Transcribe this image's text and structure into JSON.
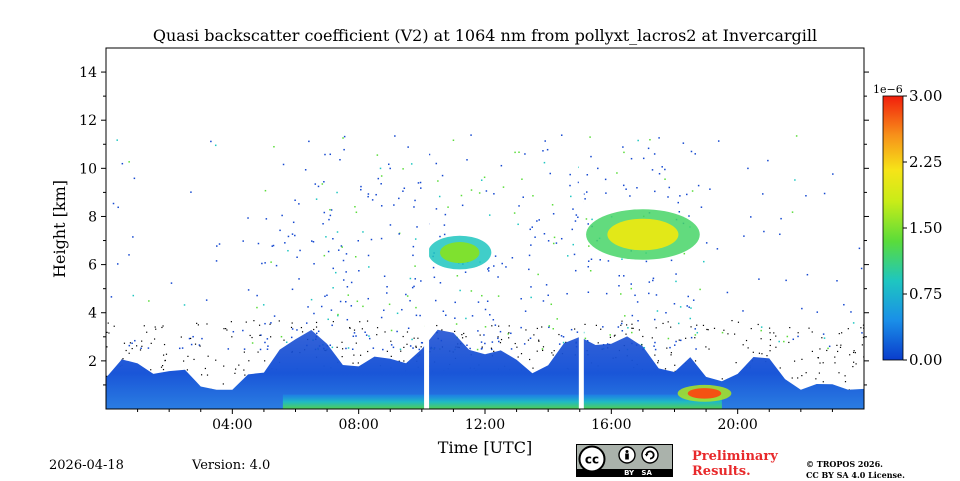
{
  "chart_data": {
    "type": "heatmap",
    "title": "Quasi backscatter coefficient (V2) at 1064 nm from pollyxt_lacros2 at Invercargill",
    "xlabel": "Time [UTC]",
    "ylabel": "Height [km]",
    "xlim_hours": [
      0,
      24
    ],
    "ylim_km": [
      0,
      15
    ],
    "x_ticks": [
      {
        "value": 4,
        "label": "04:00"
      },
      {
        "value": 8,
        "label": "08:00"
      },
      {
        "value": 12,
        "label": "12:00"
      },
      {
        "value": 16,
        "label": "16:00"
      },
      {
        "value": 20,
        "label": "20:00"
      }
    ],
    "y_ticks": [
      {
        "value": 2,
        "label": "2"
      },
      {
        "value": 4,
        "label": "4"
      },
      {
        "value": 6,
        "label": "6"
      },
      {
        "value": 8,
        "label": "8"
      },
      {
        "value": 10,
        "label": "10"
      },
      {
        "value": 12,
        "label": "12"
      },
      {
        "value": 14,
        "label": "14"
      }
    ],
    "colorbar": {
      "scale_label": "1e−6",
      "min": 0,
      "max": 3,
      "ticks": [
        {
          "value": 0,
          "label": "0.00"
        },
        {
          "value": 0.75,
          "label": "0.75"
        },
        {
          "value": 1.5,
          "label": "1.50"
        },
        {
          "value": 2.25,
          "label": "2.25"
        },
        {
          "value": 3.0,
          "label": "3.00"
        }
      ]
    },
    "data_gaps_hours": [
      10.15,
      15.05
    ],
    "aerosol_layers": [
      {
        "name": "boundary-layer",
        "start": 0,
        "end": 24,
        "top_km": 2.5,
        "value": 0.3
      },
      {
        "name": "near-surface-layer",
        "start": 5.6,
        "end": 19.5,
        "top_km": 0.6,
        "value": 1.0
      },
      {
        "name": "cirrus-cloud-1",
        "start": 10.2,
        "end": 12.2,
        "bottom_km": 5.8,
        "top_km": 7.2,
        "value": 1.5
      },
      {
        "name": "cirrus-cloud-2",
        "start": 15.2,
        "end": 18.8,
        "bottom_km": 6.2,
        "top_km": 8.3,
        "value": 2.0
      },
      {
        "name": "low-cloud",
        "start": 18.1,
        "end": 19.8,
        "bottom_km": 0.3,
        "top_km": 1.0,
        "value": 2.8
      }
    ]
  },
  "footer": {
    "date": "2026-04-18",
    "version": "Version: 4.0",
    "license_badge": "BY   SA",
    "preliminary_line1": "Preliminary",
    "preliminary_line2": "Results.",
    "copyright_line1": "© TROPOS 2026.",
    "copyright_line2": "CC BY SA 4.0 License."
  }
}
